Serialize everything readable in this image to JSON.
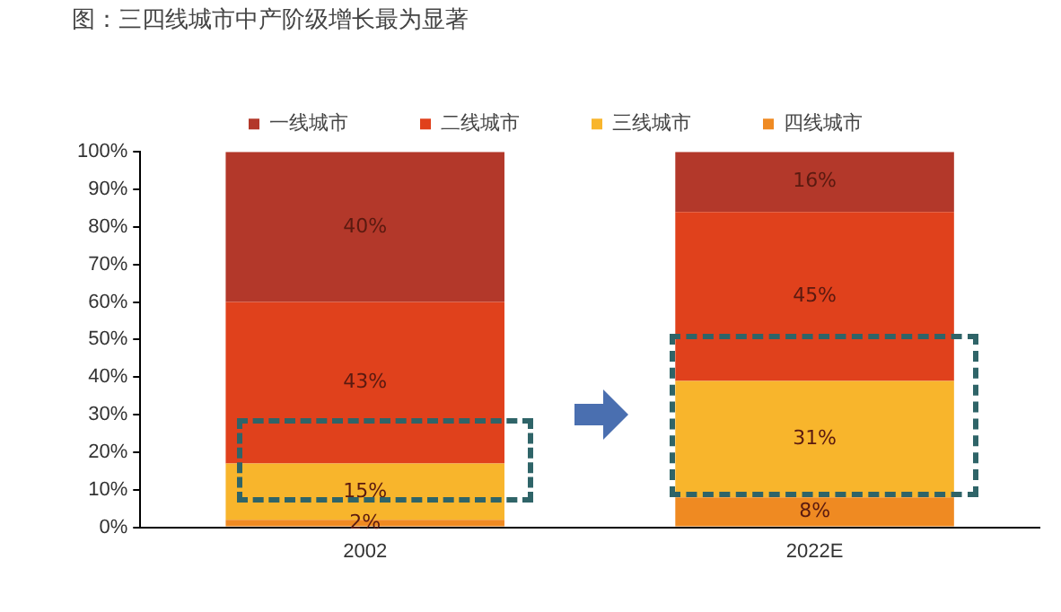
{
  "chart_data": {
    "type": "bar",
    "title": "图：三四线城市中产阶级增长最为显著",
    "stacked": true,
    "categories": [
      "2002",
      "2022E"
    ],
    "series": [
      {
        "name": "四线城市",
        "color": "#ef8a22",
        "values": [
          2,
          8
        ],
        "value_labels": [
          "2%",
          "8%"
        ]
      },
      {
        "name": "三线城市",
        "color": "#f8b52c",
        "values": [
          15,
          31
        ],
        "value_labels": [
          "15%",
          "31%"
        ]
      },
      {
        "name": "二线城市",
        "color": "#e0411c",
        "values": [
          43,
          45
        ],
        "value_labels": [
          "43%",
          "45%"
        ]
      },
      {
        "name": "一线城市",
        "color": "#b3382a",
        "values": [
          40,
          16
        ],
        "value_labels": [
          "40%",
          "16%"
        ]
      }
    ],
    "ylim": [
      0,
      100
    ],
    "yticks": [
      {
        "value": 0,
        "label": "0%"
      },
      {
        "value": 10,
        "label": "10%"
      },
      {
        "value": 20,
        "label": "20%"
      },
      {
        "value": 30,
        "label": "30%"
      },
      {
        "value": 40,
        "label": "40%"
      },
      {
        "value": 50,
        "label": "50%"
      },
      {
        "value": 60,
        "label": "60%"
      },
      {
        "value": 70,
        "label": "70%"
      },
      {
        "value": 80,
        "label": "80%"
      },
      {
        "value": 90,
        "label": "90%"
      },
      {
        "value": 100,
        "label": "100%"
      }
    ],
    "grid": false,
    "legend": "top"
  }
}
